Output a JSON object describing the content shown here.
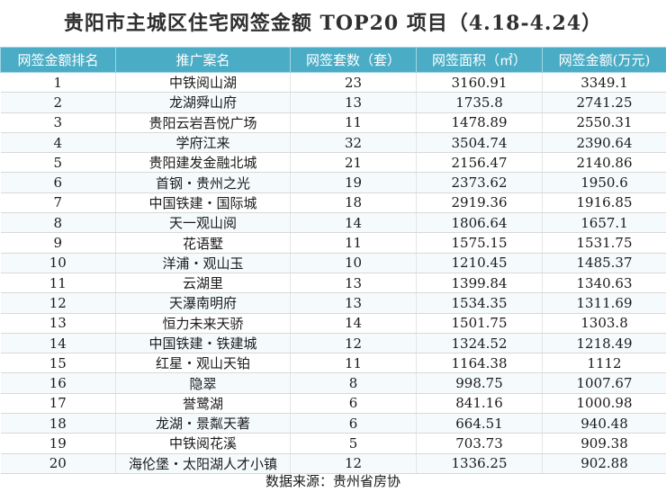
{
  "title": "贵阳市主城区住宅网签金额 TOP20 项目（4.18-4.24）",
  "columns": [
    "网签金额排名",
    "推广案名",
    "网签套数（套）",
    "网签面积（㎡）",
    "网签金额(万元)"
  ],
  "rows": [
    [
      "1",
      "中铁阅山湖",
      "23",
      "3160.91",
      "3349.1"
    ],
    [
      "2",
      "龙湖舜山府",
      "13",
      "1735.8",
      "2741.25"
    ],
    [
      "3",
      "贵阳云岩吾悦广场",
      "11",
      "1478.89",
      "2550.31"
    ],
    [
      "4",
      "学府江来",
      "32",
      "3504.74",
      "2390.64"
    ],
    [
      "5",
      "贵阳建发金融北城",
      "21",
      "2156.47",
      "2140.86"
    ],
    [
      "6",
      "首钢・贵州之光",
      "19",
      "2373.62",
      "1950.6"
    ],
    [
      "7",
      "中国铁建・国际城",
      "18",
      "2919.36",
      "1916.85"
    ],
    [
      "8",
      "天一观山阅",
      "14",
      "1806.64",
      "1657.1"
    ],
    [
      "9",
      "花语墅",
      "11",
      "1575.15",
      "1531.75"
    ],
    [
      "10",
      "洋浦・观山玉",
      "10",
      "1210.45",
      "1485.37"
    ],
    [
      "11",
      "云湖里",
      "13",
      "1399.84",
      "1340.63"
    ],
    [
      "12",
      "天瀑南明府",
      "13",
      "1534.35",
      "1311.69"
    ],
    [
      "13",
      "恒力未来天骄",
      "14",
      "1501.75",
      "1303.8"
    ],
    [
      "14",
      "中国铁建・铁建城",
      "12",
      "1324.52",
      "1218.49"
    ],
    [
      "15",
      "红星・观山天铂",
      "11",
      "1164.38",
      "1112"
    ],
    [
      "16",
      "隐翠",
      "8",
      "998.75",
      "1007.67"
    ],
    [
      "17",
      "誉鹭湖",
      "6",
      "841.16",
      "1000.98"
    ],
    [
      "18",
      "龙湖・景粼天著",
      "6",
      "664.51",
      "940.48"
    ],
    [
      "19",
      "中铁阅花溪",
      "5",
      "703.73",
      "909.38"
    ],
    [
      "20",
      "海伦堡・太阳湖人才小镇",
      "12",
      "1336.25",
      "902.88"
    ]
  ],
  "source": "数据来源：贵州省房协",
  "colors": {
    "header_bg": "#4bacc6",
    "header_text": "#ffffff"
  }
}
